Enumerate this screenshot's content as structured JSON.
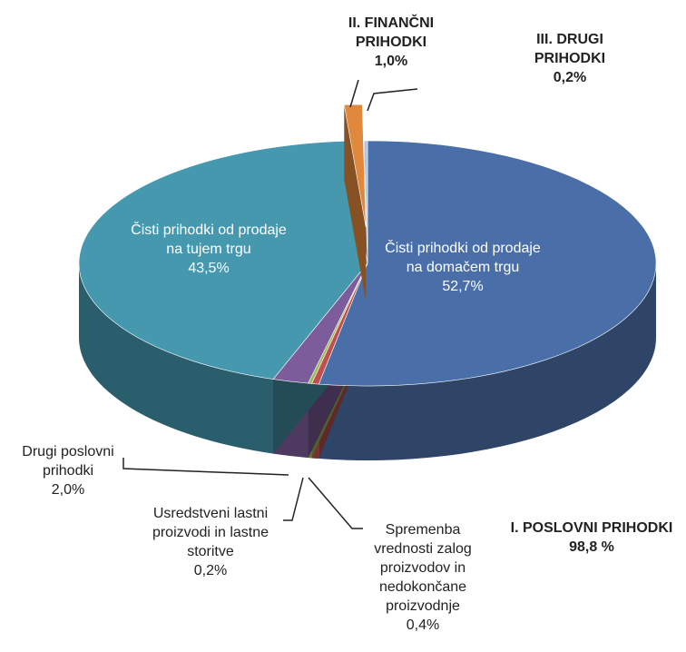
{
  "chart_data": {
    "type": "pie3d",
    "categories": [
      "Čisti prihodki od prodaje na domačem trgu",
      "Spremenba vrednosti zalog proizvodov in nedokončane proizvodnje",
      "Usredstveni lastni proizvodi in lastne storitve",
      "Drugi poslovni prihodki",
      "Čisti prihodki od prodaje na tujem trgu",
      "II. FINANČNI PRIHODKI",
      "III. DRUGI PRIHODKI"
    ],
    "values": [
      52.7,
      0.4,
      0.2,
      2.0,
      43.5,
      1.0,
      0.2
    ],
    "value_labels": [
      "52,7%",
      "0,4%",
      "0,2%",
      "2,0%",
      "43,5%",
      "1,0%",
      "0,2%"
    ],
    "colors": [
      "#4a6fa8",
      "#c0504d",
      "#9bbb59",
      "#7d5c9b",
      "#4598ae",
      "#e0883b",
      "#a8c6e6"
    ],
    "exploded": [
      false,
      false,
      false,
      false,
      false,
      true,
      false
    ],
    "annotations": [
      {
        "label": "I. POSLOVNI PRIHODKI",
        "value": 98.8,
        "value_label": "98,8 %"
      }
    ]
  }
}
